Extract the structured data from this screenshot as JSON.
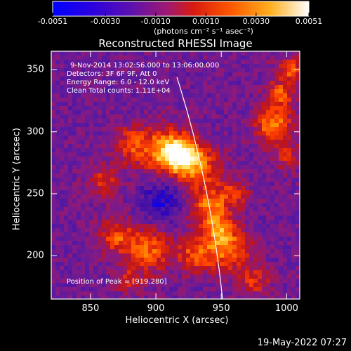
{
  "colorbar": {
    "ticks": [
      "-0.0051",
      "-0.0030",
      "-0.0010",
      "0.0010",
      "0.0030",
      "0.0051"
    ],
    "tick_values": [
      -0.0051,
      -0.003,
      -0.001,
      0.001,
      0.003,
      0.0051
    ],
    "range": [
      -0.0051,
      0.0051
    ],
    "unit_label": "(photons cm⁻² s⁻¹ asec⁻²)"
  },
  "title": "Reconstructed RHESSI Image",
  "info": {
    "time": "9-Nov-2014 13:02:56.000 to 13:06:00.000",
    "detectors": "Detectors: 3F 6F 9F, Att 0",
    "energy": "Energy Range: 6.0 - 12.0 keV",
    "clean": "Clean     Total counts: 1.11E+04"
  },
  "peak_label": "Position of Peak = [919,280]",
  "axes": {
    "xlabel": "Heliocentric X (arcsec)",
    "ylabel": "Heliocentric Y (arcsec)",
    "xlim": [
      820,
      1010
    ],
    "ylim": [
      165,
      365
    ],
    "xticks": [
      "850",
      "900",
      "950",
      "1000"
    ],
    "yticks": [
      "350",
      "300",
      "250",
      "200"
    ],
    "xtick_values": [
      850,
      900,
      950,
      1000
    ],
    "ytick_values": [
      350,
      300,
      250,
      200
    ]
  },
  "timestamp": "19-May-2022 07:27",
  "colors": {
    "background": "#000000",
    "limb_line": "#ffffff",
    "colormap": [
      "#0000ff",
      "#3a0aa8",
      "#5a1aa0",
      "#8a1a80",
      "#c0141a",
      "#ff4000",
      "#ff9a00",
      "#ffe060",
      "#ffffff"
    ]
  }
}
